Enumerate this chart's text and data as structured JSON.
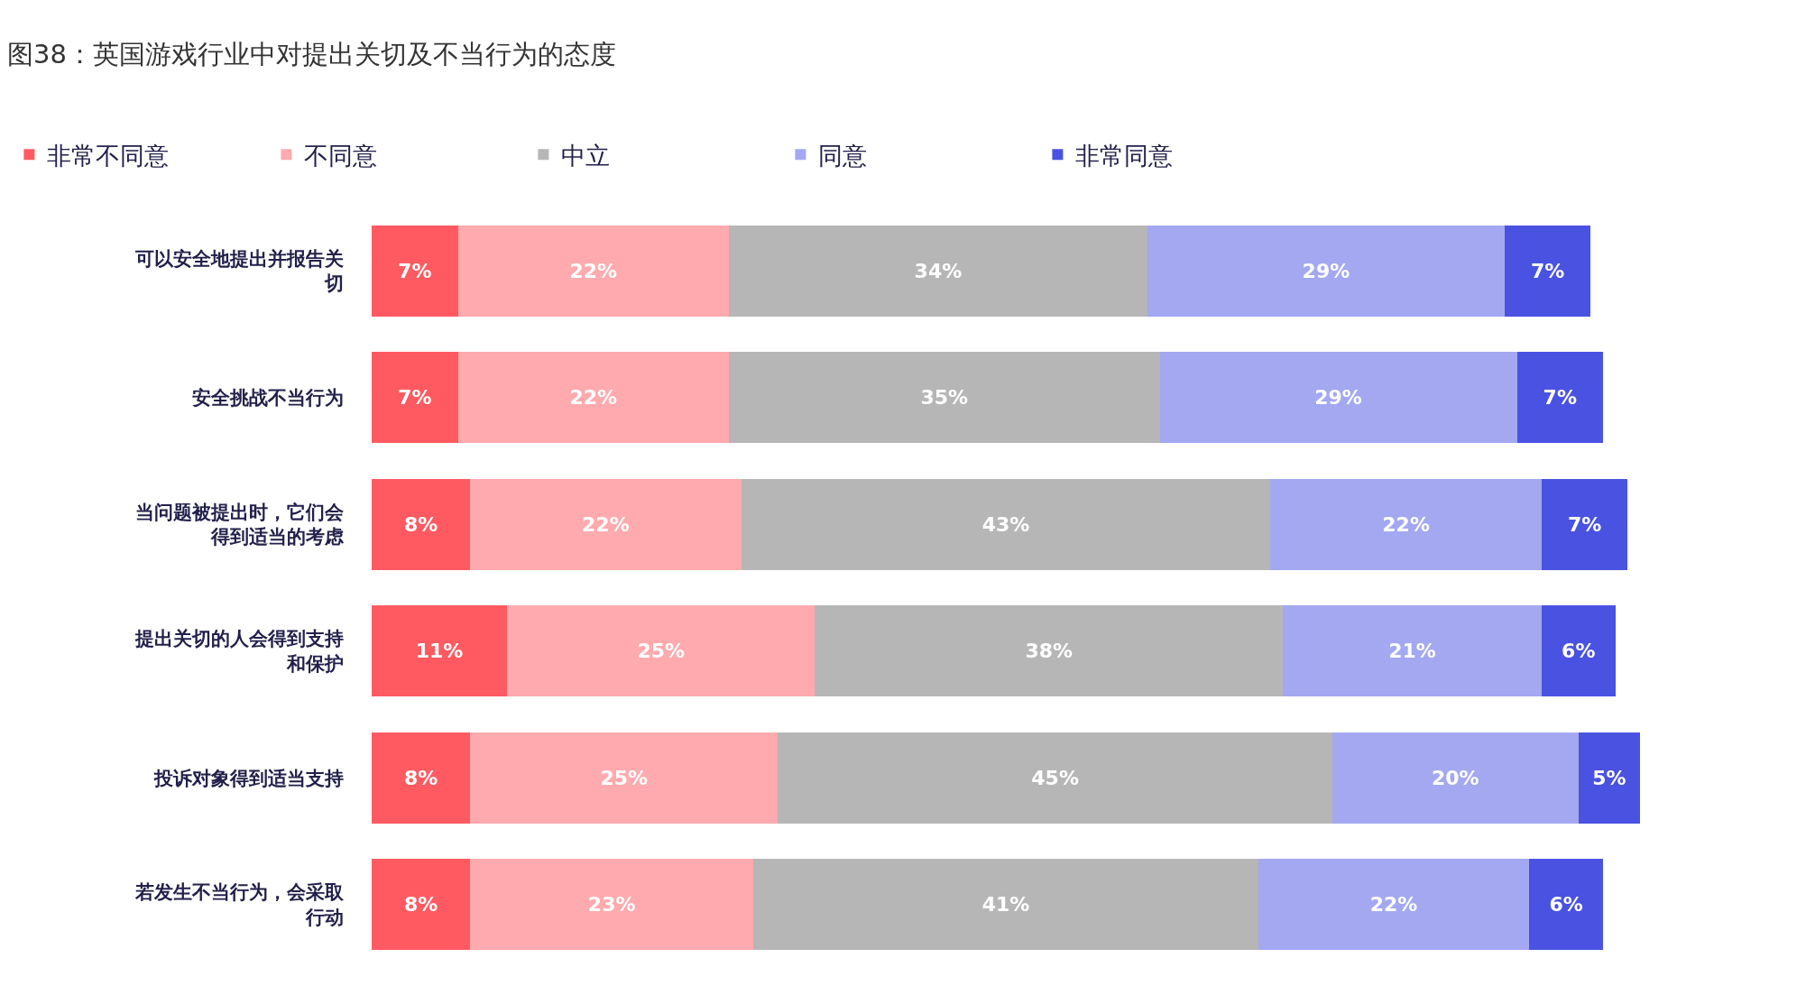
{
  "chart_data": {
    "type": "bar",
    "orientation": "horizontal",
    "stacked": true,
    "title": "图38：英国游戏行业中对提出关切及不当行为的态度",
    "categories": [
      "可以安全地提出并报告关切",
      "安全挑战不当行为",
      "当问题被提出时，它们会得到适当的考虑",
      "提出关切的人会得到支持和保护",
      "投诉对象得到适当支持",
      "若发生不当行为，会采取行动"
    ],
    "series": [
      {
        "name": "非常不同意",
        "color": "#ff5a61",
        "values": [
          7,
          7,
          8,
          11,
          8,
          8
        ],
        "value_labels": [
          "7%",
          "7%",
          "8%",
          "11%",
          "8%",
          "8%"
        ]
      },
      {
        "name": "不同意",
        "color": "#ffaaae",
        "values": [
          22,
          22,
          22,
          25,
          25,
          23
        ],
        "value_labels": [
          "22%",
          "22%",
          "22%",
          "25%",
          "25%",
          "23%"
        ]
      },
      {
        "name": "中立",
        "color": "#b6b6b6",
        "values": [
          34,
          35,
          43,
          38,
          45,
          41
        ],
        "value_labels": [
          "34%",
          "35%",
          "43%",
          "38%",
          "45%",
          "41%"
        ]
      },
      {
        "name": "同意",
        "color": "#a3a8f1",
        "values": [
          29,
          29,
          22,
          21,
          20,
          22
        ],
        "value_labels": [
          "29%",
          "29%",
          "22%",
          "21%",
          "20%",
          "22%"
        ]
      },
      {
        "name": "非常同意",
        "color": "#4a52e2",
        "values": [
          7,
          7,
          7,
          6,
          5,
          6
        ],
        "value_labels": [
          "7%",
          "7%",
          "7%",
          "6%",
          "5%",
          "6%"
        ]
      }
    ],
    "legend": "top left",
    "tick_labels": "y",
    "grid": false
  }
}
